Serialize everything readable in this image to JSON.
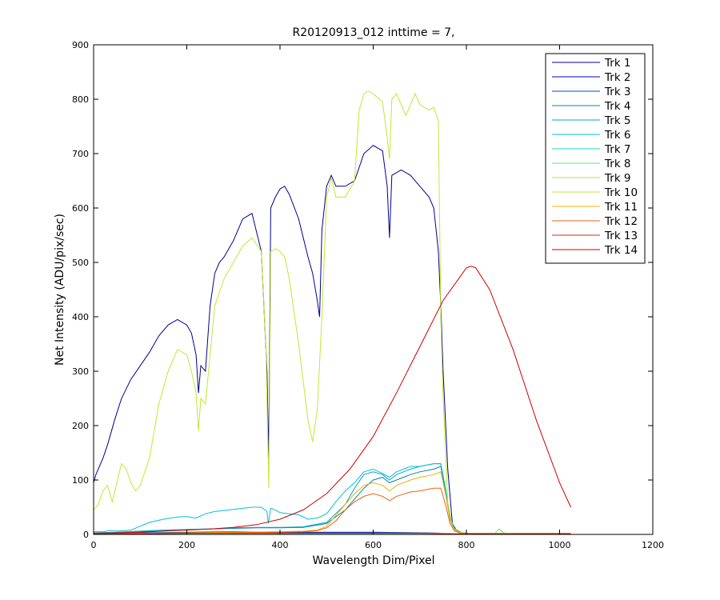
{
  "chart_data": {
    "type": "line",
    "title": "R20120913_012 inttime = 7,",
    "xlabel": "Wavelength Dim/Pixel",
    "ylabel": "Net Intensity (ADU/pix/sec)",
    "xlim": [
      0,
      1200
    ],
    "ylim": [
      0,
      900
    ],
    "xticks": [
      0,
      200,
      400,
      600,
      800,
      1000,
      1200
    ],
    "yticks": [
      0,
      100,
      200,
      300,
      400,
      500,
      600,
      700,
      800,
      900
    ],
    "grid": false,
    "legend_position": "top-right",
    "series": [
      {
        "name": "Trk 1",
        "color": "#00008F",
        "x": [
          0,
          5,
          10,
          20,
          30,
          45,
          60,
          80,
          100,
          120,
          140,
          160,
          180,
          200,
          210,
          220,
          225,
          230,
          240,
          250,
          260,
          270,
          280,
          300,
          320,
          340,
          360,
          372,
          376,
          380,
          390,
          400,
          410,
          420,
          440,
          460,
          470,
          480,
          485,
          490,
          500,
          510,
          520,
          540,
          560,
          580,
          600,
          620,
          630,
          635,
          640,
          660,
          680,
          700,
          720,
          730,
          740,
          745,
          750,
          760,
          770,
          780,
          800,
          850,
          900,
          950,
          1000,
          1024
        ],
        "y": [
          95,
          110,
          120,
          140,
          165,
          210,
          250,
          285,
          310,
          335,
          365,
          385,
          395,
          385,
          370,
          330,
          260,
          310,
          300,
          420,
          480,
          500,
          510,
          540,
          580,
          590,
          520,
          300,
          140,
          600,
          620,
          635,
          640,
          625,
          580,
          510,
          480,
          430,
          400,
          560,
          640,
          660,
          640,
          640,
          650,
          700,
          715,
          705,
          640,
          545,
          660,
          670,
          660,
          640,
          620,
          600,
          520,
          420,
          300,
          120,
          20,
          5,
          2,
          2,
          2,
          2,
          2,
          2
        ]
      },
      {
        "name": "Trk 2",
        "color": "#0000C8",
        "x": [
          0,
          100,
          200,
          300,
          400,
          500,
          600,
          700,
          760,
          770,
          780,
          800,
          900,
          1024
        ],
        "y": [
          1,
          2,
          3,
          4,
          3,
          3,
          3,
          3,
          2,
          1,
          1,
          1,
          1,
          1
        ]
      },
      {
        "name": "Trk 3",
        "color": "#0050C0",
        "x": [
          0,
          100,
          200,
          300,
          400,
          500,
          600,
          700,
          760,
          770,
          780,
          800,
          900,
          1024
        ],
        "y": [
          2,
          3,
          4,
          5,
          4,
          4,
          4,
          3,
          2,
          1,
          1,
          1,
          1,
          1
        ]
      },
      {
        "name": "Trk 4",
        "color": "#0085B5",
        "x": [
          0,
          50,
          100,
          150,
          200,
          250,
          300,
          350,
          400,
          450,
          500,
          540,
          560,
          580,
          600,
          620,
          635,
          650,
          680,
          700,
          730,
          745,
          755,
          765,
          775,
          790,
          820,
          900,
          1024
        ],
        "y": [
          2,
          3,
          5,
          7,
          9,
          10,
          11,
          12,
          12,
          13,
          20,
          45,
          65,
          85,
          100,
          105,
          95,
          100,
          110,
          115,
          120,
          125,
          80,
          30,
          10,
          3,
          1,
          1,
          1
        ]
      },
      {
        "name": "Trk 5",
        "color": "#00A8C8",
        "x": [
          0,
          50,
          100,
          150,
          200,
          250,
          300,
          350,
          400,
          450,
          500,
          540,
          560,
          580,
          600,
          620,
          635,
          650,
          680,
          700,
          730,
          745,
          755,
          765,
          775,
          790,
          820,
          900,
          1024
        ],
        "y": [
          3,
          4,
          6,
          8,
          9,
          10,
          12,
          13,
          13,
          14,
          22,
          55,
          85,
          110,
          115,
          110,
          100,
          110,
          120,
          125,
          130,
          130,
          85,
          30,
          10,
          3,
          1,
          1,
          1
        ]
      },
      {
        "name": "Trk 6",
        "color": "#00C0D8",
        "x": [
          0,
          25,
          30,
          50,
          80,
          100,
          120,
          150,
          180,
          200,
          220,
          240,
          260,
          280,
          300,
          320,
          340,
          360,
          372,
          375,
          380,
          390,
          400,
          420,
          440,
          460,
          480,
          500,
          520,
          540,
          560,
          580,
          600,
          620,
          635,
          650,
          680,
          700,
          730,
          745,
          755,
          765,
          775,
          790,
          820,
          900,
          1024
        ],
        "y": [
          5,
          5,
          7,
          6,
          8,
          15,
          22,
          28,
          32,
          33,
          30,
          38,
          42,
          44,
          46,
          48,
          50,
          50,
          42,
          20,
          48,
          45,
          40,
          38,
          36,
          28,
          30,
          38,
          60,
          80,
          95,
          115,
          120,
          112,
          105,
          115,
          125,
          125,
          130,
          130,
          85,
          30,
          10,
          3,
          1,
          1,
          1
        ]
      },
      {
        "name": "Trk 7",
        "color": "#20D0D0",
        "x": [
          0,
          100,
          200,
          300,
          400,
          500,
          600,
          700,
          760,
          770,
          780,
          800,
          900,
          1024
        ],
        "y": [
          1,
          2,
          2,
          3,
          2,
          2,
          2,
          2,
          2,
          1,
          1,
          1,
          1,
          1
        ]
      },
      {
        "name": "Trk 8",
        "color": "#70E070",
        "x": [
          0,
          100,
          200,
          300,
          400,
          500,
          600,
          700,
          760,
          770,
          780,
          800,
          860,
          870,
          880,
          900,
          1024
        ],
        "y": [
          1,
          1,
          2,
          2,
          2,
          2,
          2,
          2,
          2,
          1,
          1,
          1,
          1,
          10,
          3,
          1,
          1
        ]
      },
      {
        "name": "Trk 9",
        "color": "#A8E840",
        "x": [
          0,
          100,
          200,
          300,
          400,
          500,
          600,
          700,
          760,
          770,
          780,
          800,
          900,
          1024
        ],
        "y": [
          1,
          1,
          2,
          2,
          2,
          2,
          2,
          2,
          2,
          1,
          1,
          1,
          1,
          1
        ]
      },
      {
        "name": "Trk 10",
        "color": "#C0E830",
        "x": [
          0,
          10,
          20,
          30,
          40,
          50,
          60,
          70,
          80,
          90,
          100,
          120,
          140,
          160,
          180,
          200,
          210,
          220,
          225,
          230,
          240,
          260,
          280,
          300,
          320,
          340,
          360,
          370,
          376,
          380,
          390,
          400,
          410,
          420,
          440,
          460,
          470,
          480,
          490,
          500,
          510,
          520,
          540,
          560,
          570,
          580,
          590,
          600,
          620,
          630,
          635,
          640,
          650,
          670,
          690,
          700,
          720,
          730,
          740,
          745,
          750,
          760,
          770,
          780,
          800,
          850,
          900,
          950,
          1000,
          1024
        ],
        "y": [
          45,
          55,
          80,
          90,
          60,
          95,
          130,
          120,
          95,
          80,
          90,
          140,
          240,
          300,
          340,
          330,
          300,
          260,
          190,
          250,
          240,
          420,
          470,
          500,
          530,
          545,
          520,
          340,
          85,
          520,
          525,
          520,
          510,
          470,
          350,
          210,
          170,
          230,
          400,
          620,
          655,
          620,
          620,
          650,
          780,
          810,
          815,
          810,
          795,
          730,
          690,
          800,
          810,
          770,
          810,
          790,
          780,
          785,
          760,
          400,
          250,
          60,
          15,
          5,
          2,
          2,
          2,
          2,
          2,
          2
        ]
      },
      {
        "name": "Trk 11",
        "color": "#F0B000",
        "x": [
          0,
          100,
          200,
          300,
          400,
          450,
          480,
          500,
          520,
          540,
          560,
          580,
          600,
          620,
          635,
          650,
          680,
          700,
          730,
          745,
          755,
          765,
          775,
          790,
          820,
          900,
          1024
        ],
        "y": [
          1,
          2,
          3,
          4,
          5,
          6,
          8,
          15,
          35,
          55,
          75,
          90,
          95,
          90,
          80,
          90,
          100,
          105,
          110,
          115,
          75,
          25,
          8,
          2,
          1,
          1,
          1
        ]
      },
      {
        "name": "Trk 12",
        "color": "#F06010",
        "x": [
          0,
          100,
          200,
          300,
          400,
          450,
          480,
          500,
          520,
          540,
          560,
          580,
          600,
          620,
          635,
          650,
          680,
          700,
          730,
          745,
          755,
          765,
          775,
          790,
          820,
          900,
          1024
        ],
        "y": [
          1,
          2,
          2,
          3,
          4,
          5,
          7,
          12,
          25,
          45,
          60,
          70,
          75,
          70,
          62,
          70,
          78,
          80,
          85,
          85,
          55,
          20,
          6,
          2,
          1,
          1,
          1
        ]
      },
      {
        "name": "Trk 13",
        "color": "#E02000",
        "x": [
          0,
          100,
          200,
          300,
          400,
          500,
          600,
          700,
          760,
          770,
          780,
          800,
          900,
          1024
        ],
        "y": [
          1,
          1,
          2,
          2,
          2,
          2,
          2,
          2,
          1,
          1,
          1,
          1,
          1,
          1
        ]
      },
      {
        "name": "Trk 14",
        "color": "#D00000",
        "x": [
          0,
          50,
          100,
          150,
          200,
          250,
          300,
          350,
          400,
          450,
          500,
          550,
          600,
          650,
          700,
          750,
          800,
          810,
          820,
          850,
          900,
          950,
          1000,
          1024
        ],
        "y": [
          2,
          3,
          4,
          6,
          8,
          10,
          13,
          18,
          28,
          45,
          75,
          120,
          180,
          260,
          345,
          430,
          490,
          493,
          490,
          450,
          340,
          210,
          95,
          50
        ]
      }
    ]
  }
}
